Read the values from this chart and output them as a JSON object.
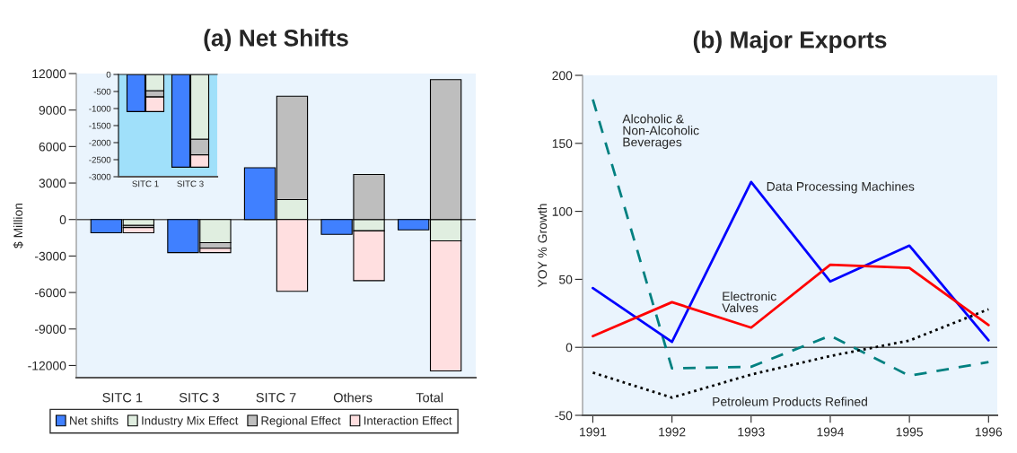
{
  "chart_data": [
    {
      "type": "bar",
      "title": "(a) Net Shifts",
      "ylabel": "$ Million",
      "categories": [
        "SITC 1",
        "SITC 3",
        "SITC 7",
        "Others",
        "Total"
      ],
      "legend": "bottom",
      "ylim": [
        -13000,
        12000
      ],
      "yticks": [
        -12000,
        -9000,
        -6000,
        -3000,
        0,
        3000,
        6000,
        9000,
        12000
      ],
      "ref_lines": [
        {
          "axis": "y",
          "value": 0,
          "color": "#555555"
        }
      ],
      "series": [
        {
          "name": "Net shifts",
          "color": "#4080ff",
          "values": [
            -1090,
            -2720,
            4260,
            -1220,
            -850
          ]
        },
        {
          "name": "Industry Mix Effect",
          "color": "#e0eee0",
          "base": [
            0,
            0,
            0,
            0,
            0
          ],
          "values": [
            -480,
            -1900,
            1640,
            -930,
            -1750
          ]
        },
        {
          "name": "Regional Effect",
          "color": "#bebebe",
          "base": [
            -480,
            -1900,
            1640,
            0,
            0
          ],
          "values": [
            -180,
            -460,
            8500,
            3700,
            11500
          ]
        },
        {
          "name": "Interaction Effect",
          "color": "#ffdfe0",
          "base": [
            -660,
            -2360,
            0,
            -930,
            -1750
          ],
          "values": [
            -430,
            -360,
            -5900,
            -4100,
            -10700
          ]
        }
      ]
    },
    {
      "type": "bar",
      "categories": [
        "SITC 1",
        "SITC 3"
      ],
      "ylim": [
        -3000,
        0
      ],
      "yticks": [
        -3000,
        -2500,
        -2000,
        -1500,
        -1000,
        -500,
        0
      ],
      "series": [
        {
          "color": "#4080ff",
          "values": [
            -1090,
            -2720
          ]
        },
        {
          "color": "#e0eee0",
          "base": [
            0,
            0
          ],
          "values": [
            -480,
            -1900
          ]
        },
        {
          "color": "#bebebe",
          "base": [
            -480,
            -1900
          ],
          "values": [
            -180,
            -460
          ]
        },
        {
          "color": "#ffdfe0",
          "base": [
            -660,
            -2360
          ],
          "values": [
            -430,
            -360
          ]
        }
      ]
    },
    {
      "type": "line",
      "title": "(b) Major Exports",
      "ylabel": "YOY % Growth",
      "x": [
        1991,
        1992,
        1993,
        1994,
        1995,
        1996
      ],
      "xlim": [
        1990.87,
        1996.11
      ],
      "xticks": [
        1991,
        1992,
        1993,
        1994,
        1995,
        1996
      ],
      "ylim": [
        -50,
        200
      ],
      "yticks": [
        -50,
        0,
        50,
        100,
        150,
        200
      ],
      "ref_lines": [
        {
          "axis": "y",
          "value": 0,
          "color": "#555555"
        }
      ],
      "series": [
        {
          "name": "Alcoholic &\nNon-Alcoholic\nBeverages",
          "color": "#008080",
          "line_style": "dashed",
          "values": [
            182.3,
            -15.5,
            -14.3,
            8.6,
            -20.9,
            -10.9
          ]
        },
        {
          "name": "Data Processing Machines",
          "color": "#0000ff",
          "line_style": "solid",
          "values": [
            43.6,
            4,
            121.6,
            48.4,
            74.8,
            5.2
          ]
        },
        {
          "name": "Electronic\nValves",
          "color": "#ff0000",
          "line_style": "solid",
          "values": [
            8.2,
            33.2,
            14.5,
            60.7,
            58.4,
            16.4
          ]
        },
        {
          "name": "Petroleum Products Refined",
          "color": "#000000",
          "line_style": "dotted",
          "values": [
            -18.6,
            -37,
            -20,
            -6.4,
            5,
            28
          ]
        }
      ]
    }
  ]
}
